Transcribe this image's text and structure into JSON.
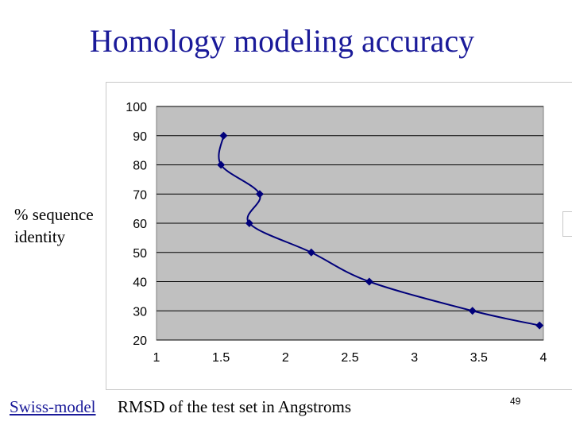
{
  "slide": {
    "title": "Homology modeling accuracy",
    "footer_link": "Swiss-model",
    "page_number": "49"
  },
  "chart_data": {
    "type": "line",
    "title": "",
    "xlabel": "RMSD of the test set in Angstroms",
    "ylabel_lines": [
      "% sequence",
      "identity"
    ],
    "xlim": [
      1,
      4
    ],
    "ylim": [
      20,
      100
    ],
    "x_ticks": [
      1,
      1.5,
      2,
      2.5,
      3,
      3.5,
      4
    ],
    "x_tick_labels": [
      "1",
      "1.5",
      "2",
      "2.5",
      "3",
      "3.5",
      "4"
    ],
    "y_ticks": [
      20,
      30,
      40,
      50,
      60,
      70,
      80,
      90,
      100
    ],
    "y_tick_labels": [
      "20",
      "30",
      "40",
      "50",
      "60",
      "70",
      "80",
      "90",
      "100"
    ],
    "grid": true,
    "smooth": true,
    "series": [
      {
        "name": "",
        "color": "#00007a",
        "points": [
          {
            "x": 1.52,
            "y": 90
          },
          {
            "x": 1.5,
            "y": 80
          },
          {
            "x": 1.8,
            "y": 70
          },
          {
            "x": 1.72,
            "y": 60
          },
          {
            "x": 2.2,
            "y": 50
          },
          {
            "x": 2.65,
            "y": 40
          },
          {
            "x": 3.45,
            "y": 30
          },
          {
            "x": 3.97,
            "y": 25
          }
        ]
      }
    ],
    "plot_background": "#c0c0c0",
    "gridline_color": "#000000"
  }
}
